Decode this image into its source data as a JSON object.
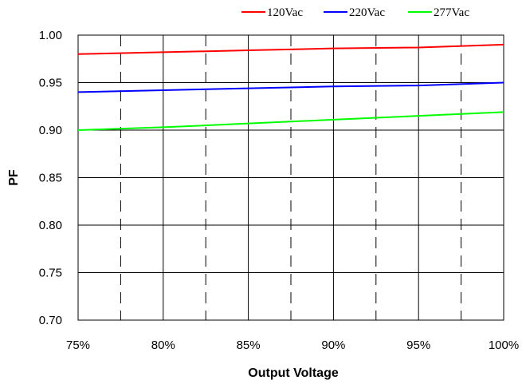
{
  "chart_data": {
    "type": "line",
    "title": "",
    "xlabel": "Output Voltage",
    "ylabel": "PF",
    "x": [
      75,
      80,
      85,
      90,
      95,
      100
    ],
    "x_tick_labels": [
      "75%",
      "80%",
      "85%",
      "90%",
      "95%",
      "100%"
    ],
    "y_tick_labels": [
      "0.70",
      "0.75",
      "0.80",
      "0.85",
      "0.90",
      "0.95",
      "1.00"
    ],
    "xlim": [
      75,
      100
    ],
    "ylim": [
      0.7,
      1.0
    ],
    "grid": true,
    "legend_position": "top-right",
    "series": [
      {
        "name": "120Vac",
        "color": "#ff0000",
        "values": [
          0.98,
          0.982,
          0.984,
          0.986,
          0.987,
          0.99
        ]
      },
      {
        "name": "220Vac",
        "color": "#0000ff",
        "values": [
          0.94,
          0.942,
          0.944,
          0.946,
          0.947,
          0.95
        ]
      },
      {
        "name": "277Vac",
        "color": "#00ff00",
        "values": [
          0.9,
          0.903,
          0.907,
          0.911,
          0.915,
          0.919
        ]
      }
    ]
  }
}
